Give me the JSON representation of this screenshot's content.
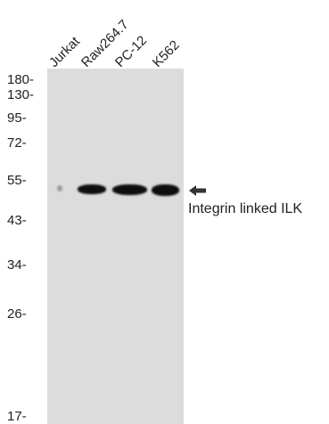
{
  "lanes": [
    "Jurkat",
    "Raw264.7",
    "PC-12",
    "K562"
  ],
  "mw_markers": [
    "180-",
    "130-",
    "95-",
    "72-",
    "55-",
    "43-",
    "34-",
    "26-",
    "17-"
  ],
  "target": "Integrin linked ILK",
  "colors": {
    "membrane": "#dcdcdc",
    "band": "#0e0e0e"
  }
}
